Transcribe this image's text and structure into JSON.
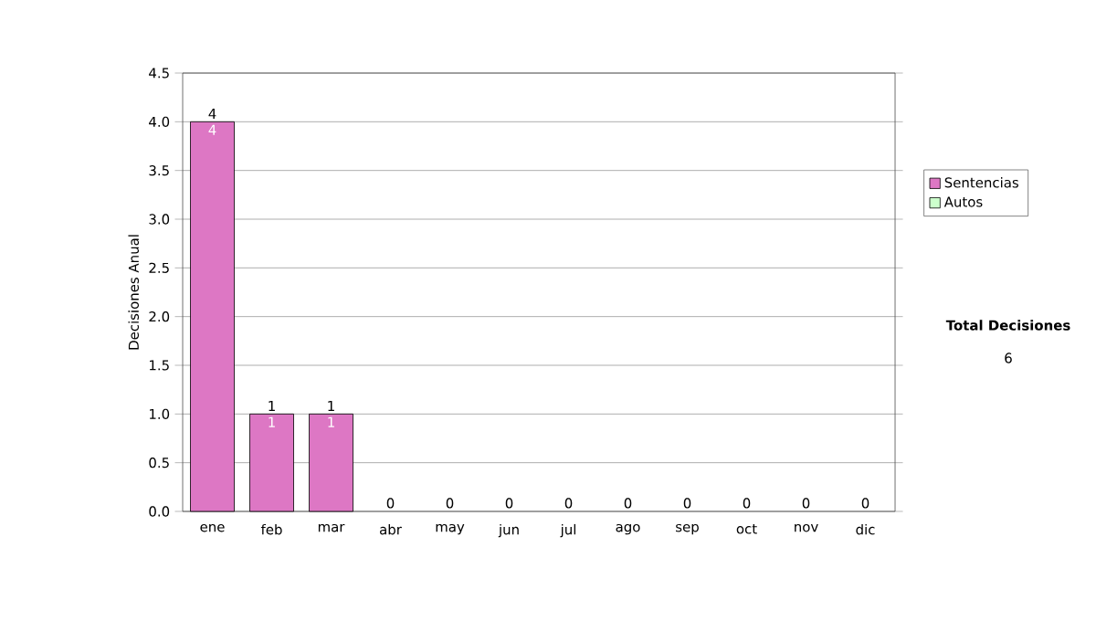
{
  "chart_data": {
    "type": "bar",
    "stacked": true,
    "ylabel": "Decisiones Anual",
    "categories": [
      "ene",
      "feb",
      "mar",
      "abr",
      "may",
      "jun",
      "jul",
      "ago",
      "sep",
      "oct",
      "nov",
      "dic"
    ],
    "series": [
      {
        "name": "Sentencias",
        "color": "#dd77c4",
        "values": [
          4,
          1,
          1,
          0,
          0,
          0,
          0,
          0,
          0,
          0,
          0,
          0
        ],
        "value_labels": [
          "4",
          "1",
          "1",
          null,
          null,
          null,
          null,
          null,
          null,
          null,
          null,
          null
        ]
      },
      {
        "name": "Autos",
        "color": "#ccffcc",
        "values": [
          0,
          0,
          0,
          0,
          0,
          0,
          0,
          0,
          0,
          0,
          0,
          0
        ]
      }
    ],
    "totals": [
      "4",
      "1",
      "1",
      "0",
      "0",
      "0",
      "0",
      "0",
      "0",
      "0",
      "0",
      "0"
    ],
    "ylim": [
      0,
      4.5
    ],
    "yticks": [
      {
        "value": 0,
        "label": "0.0"
      },
      0.5,
      {
        "value": 1,
        "label": "1.0"
      },
      1.5,
      {
        "value": 2,
        "label": "2.0"
      },
      2.5,
      {
        "value": 3,
        "label": "3.0"
      },
      3.5,
      {
        "value": 4,
        "label": "4.0"
      },
      4.5
    ],
    "grid": "y",
    "legend": "right",
    "annotations": [
      "Total Decisiones",
      "6"
    ]
  }
}
